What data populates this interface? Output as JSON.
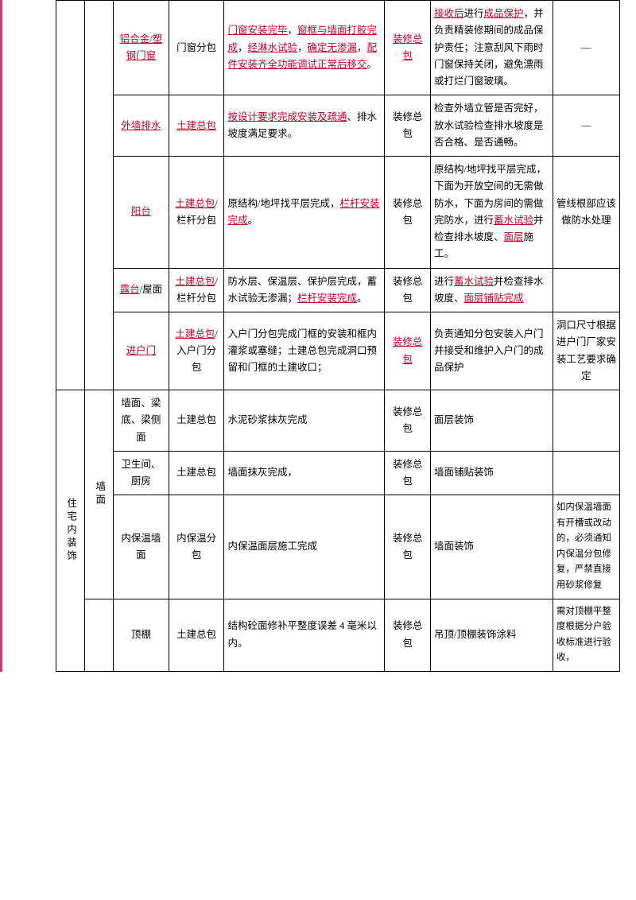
{
  "rows": [
    {
      "c3": {
        "type": "link",
        "text": "铝合金/塑钢门窗"
      },
      "c4": {
        "type": "plain",
        "text": "门窗分包"
      },
      "c5": {
        "parts": [
          {
            "t": "门窗安装完毕",
            "l": 1
          },
          {
            "t": "，",
            "l": 0
          },
          {
            "t": "窗框与墙面打胶完成",
            "l": 1
          },
          {
            "t": "，",
            "l": 0
          },
          {
            "t": "经淋水试验",
            "l": 1
          },
          {
            "t": "，",
            "l": 0
          },
          {
            "t": "确定无渗漏",
            "l": 1
          },
          {
            "t": "，",
            "l": 0
          },
          {
            "t": "配件安装齐全功能调试正常后移交",
            "l": 1
          },
          {
            "t": "。",
            "l": 0
          }
        ]
      },
      "c6": {
        "type": "link",
        "text": "装修总包"
      },
      "c7": {
        "parts": [
          {
            "t": "接收后",
            "l": 1
          },
          {
            "t": "进行",
            "l": 0
          },
          {
            "t": "成品保护",
            "l": 1
          },
          {
            "t": "，并负责精装修期间的成品保护责任；注意刮风下雨时门窗保持关闭，避免漂雨或打烂门窗玻璃。",
            "l": 0
          }
        ]
      },
      "c8": {
        "type": "plain",
        "text": "—"
      }
    },
    {
      "c3": {
        "type": "link",
        "text": "外墙排水"
      },
      "c4": {
        "type": "link",
        "text": "土建总包"
      },
      "c5": {
        "parts": [
          {
            "t": "按设计要求完成安装及疏通",
            "l": 1
          },
          {
            "t": "、排水坡度满足要求。",
            "l": 0
          }
        ]
      },
      "c6": {
        "type": "plain",
        "text": "装修总包"
      },
      "c7": {
        "parts": [
          {
            "t": "检查外墙立管是否完好，放水试验检查排水坡度是否合格、是否通畅。",
            "l": 0
          }
        ]
      },
      "c8": {
        "type": "plain",
        "text": "—"
      }
    },
    {
      "c3": {
        "type": "link",
        "text": "阳台"
      },
      "c4": {
        "parts": [
          {
            "t": "土建总包",
            "l": 1
          },
          {
            "t": "/栏杆分包",
            "l": 0
          }
        ]
      },
      "c5": {
        "parts": [
          {
            "t": "原结构/地坪找平层完成，",
            "l": 0
          },
          {
            "t": "栏杆安装完成",
            "l": 1
          },
          {
            "t": "。",
            "l": 0
          }
        ]
      },
      "c6": {
        "type": "plain",
        "text": "装修总包"
      },
      "c7": {
        "parts": [
          {
            "t": "原结构/地坪找平层完成，下面为开放空间的无需做防水，下面为房间的需做完防水，进行",
            "l": 0
          },
          {
            "t": "蓄水试验",
            "l": 1
          },
          {
            "t": "并检查排水坡度、",
            "l": 0
          },
          {
            "t": "面层",
            "l": 1
          },
          {
            "t": "施工。",
            "l": 0
          }
        ]
      },
      "c8": {
        "type": "plain",
        "text": "管线根部应该做防水处理"
      }
    },
    {
      "c3": {
        "parts": [
          {
            "t": "露台",
            "l": 1
          },
          {
            "t": "/屋面",
            "l": 0
          }
        ]
      },
      "c4": {
        "parts": [
          {
            "t": "土建总包",
            "l": 1
          },
          {
            "t": "/栏杆分包",
            "l": 0
          }
        ]
      },
      "c5": {
        "parts": [
          {
            "t": "防水层、保温层、保护层完成，蓄水试验无渗漏；",
            "l": 0
          },
          {
            "t": "栏杆安装完成",
            "l": 1
          },
          {
            "t": "。",
            "l": 0
          }
        ]
      },
      "c6": {
        "type": "plain",
        "text": "装修总包"
      },
      "c7": {
        "parts": [
          {
            "t": "进行",
            "l": 0
          },
          {
            "t": "蓄水试验",
            "l": 1
          },
          {
            "t": "并检查排水坡度、",
            "l": 0
          },
          {
            "t": "面层铺贴完成",
            "l": 1
          }
        ]
      },
      "c8": {
        "type": "plain",
        "text": ""
      }
    },
    {
      "c3": {
        "type": "link",
        "text": "进户门"
      },
      "c4": {
        "parts": [
          {
            "t": "土建总包",
            "l": 1
          },
          {
            "t": "/入户门分包",
            "l": 0
          }
        ]
      },
      "c5": {
        "parts": [
          {
            "t": "入户门分包完成门框的安装和框内灌浆或塞缝；土建总包完成洞口预留和门框的土建收口；",
            "l": 0
          }
        ]
      },
      "c6": {
        "type": "link",
        "text": "装修总包"
      },
      "c7": {
        "parts": [
          {
            "t": "负责通知分包安装入户门并接受和维护入户门的成品保护",
            "l": 0
          }
        ]
      },
      "c8": {
        "type": "plain",
        "text": "洞口尺寸根据进户门厂家安装工艺要求确定"
      }
    }
  ],
  "groupLabel": "住宅内装饰",
  "subLabel": "墙面",
  "subrows": [
    {
      "c3": "墙面、梁底、梁侧面",
      "c4": "土建总包",
      "c5": "水泥砂浆抹灰完成",
      "c6": "装修总包",
      "c7": "面层装饰",
      "c8": ""
    },
    {
      "c3": "卫生间、厨房",
      "c4": "土建总包",
      "c5": "墙面抹灰完成，",
      "c6": "装修总包",
      "c7": "墙面铺贴装饰",
      "c8": ""
    },
    {
      "c3": "内保温墙面",
      "c4": "内保温分包",
      "c5": "内保温面层施工完成",
      "c6": "装修总包",
      "c7": "墙面装饰",
      "c8": "如内保温墙面有开槽或改动的，必须通知内保温分包修复，严禁直接用砂浆修复"
    },
    {
      "c3": "顶棚",
      "c4": "土建总包",
      "c5": "结构砼面修补平整度误差 4 毫米以内。",
      "c6": "装修总包",
      "c7": "吊顶/顶棚装饰涂料",
      "c8": "需对顶棚平整度根据分户验收标准进行验收，",
      "span": false
    }
  ],
  "colors": {
    "link": "#c0002a"
  }
}
